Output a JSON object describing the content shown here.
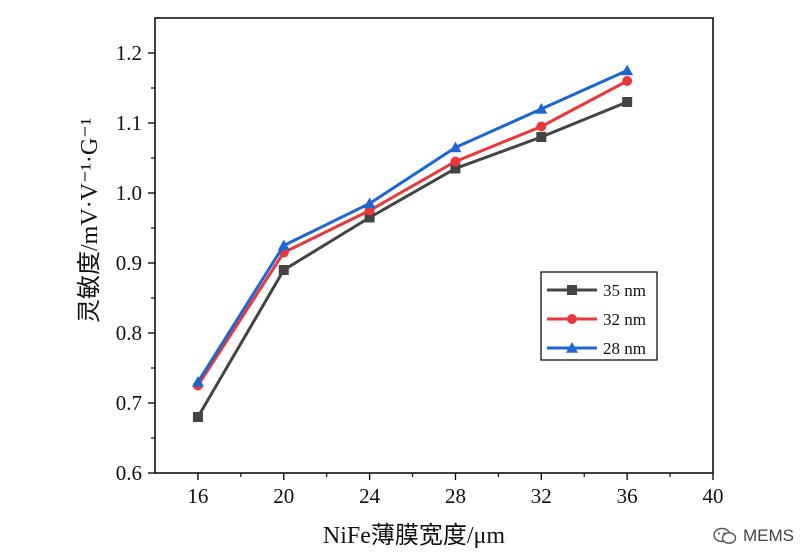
{
  "chart_data": {
    "type": "line",
    "xlabel": "NiFe薄膜宽度/μm",
    "ylabel": "灵敏度/mV·V⁻¹·G⁻¹",
    "xlim": [
      14,
      40
    ],
    "ylim": [
      0.6,
      1.25
    ],
    "xticks": [
      16,
      20,
      24,
      28,
      32,
      36,
      40
    ],
    "yticks": [
      0.6,
      0.7,
      0.8,
      0.9,
      1.0,
      1.1,
      1.2
    ],
    "ytick_labels": [
      "0.6",
      "0.7",
      "0.8",
      "0.9",
      "1.0",
      "1.1",
      "1.2"
    ],
    "x": [
      16,
      20,
      24,
      28,
      32,
      36
    ],
    "series": [
      {
        "name": "35 nm",
        "color": "#444444",
        "marker": "square",
        "values": [
          0.68,
          0.89,
          0.965,
          1.035,
          1.08,
          1.13
        ]
      },
      {
        "name": "32 nm",
        "color": "#e8383b",
        "marker": "circle",
        "values": [
          0.725,
          0.915,
          0.975,
          1.045,
          1.095,
          1.16
        ]
      },
      {
        "name": "28 nm",
        "color": "#1f66d1",
        "marker": "triangle",
        "values": [
          0.73,
          0.925,
          0.985,
          1.065,
          1.12,
          1.175
        ]
      }
    ],
    "legend_position": "lower-right",
    "grid": false
  },
  "watermark": {
    "text": "MEMS",
    "icon": "wechat-icon"
  }
}
